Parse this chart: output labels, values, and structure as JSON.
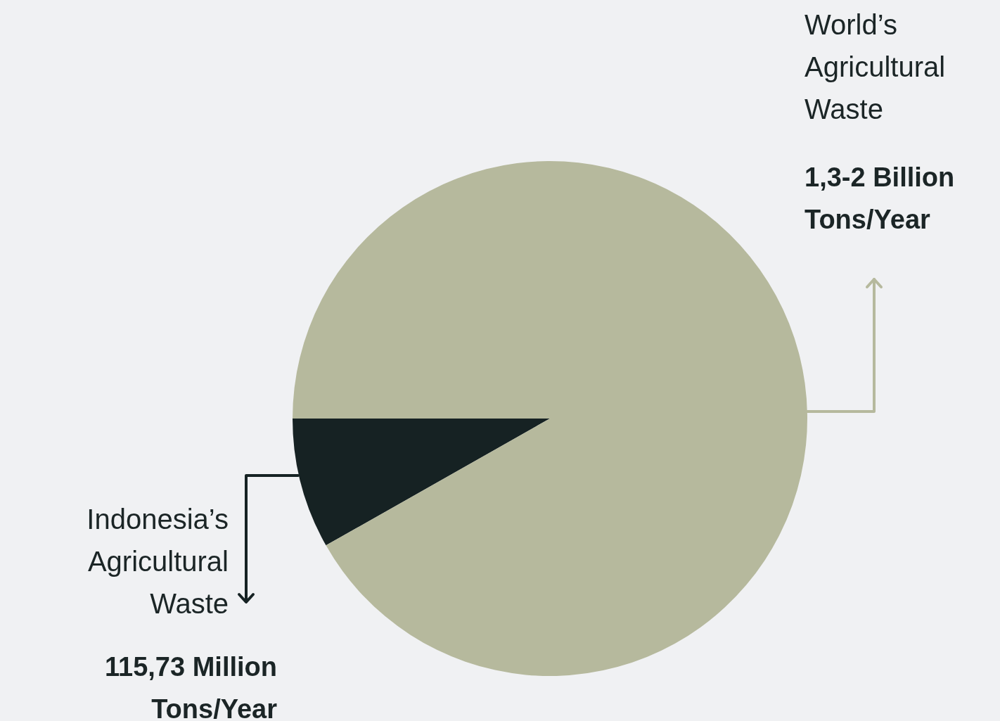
{
  "chart_data": {
    "type": "pie",
    "categories": [
      "Indonesia’s Agricultural Waste",
      "World’s Agricultural Waste"
    ],
    "values": [
      8.2,
      91.8
    ],
    "colors": [
      "#162223",
      "#b6b99d"
    ],
    "annotations": [
      "115,73 Million Tons/Year",
      "1,3-2 Billion Tons/Year"
    ]
  }
}
